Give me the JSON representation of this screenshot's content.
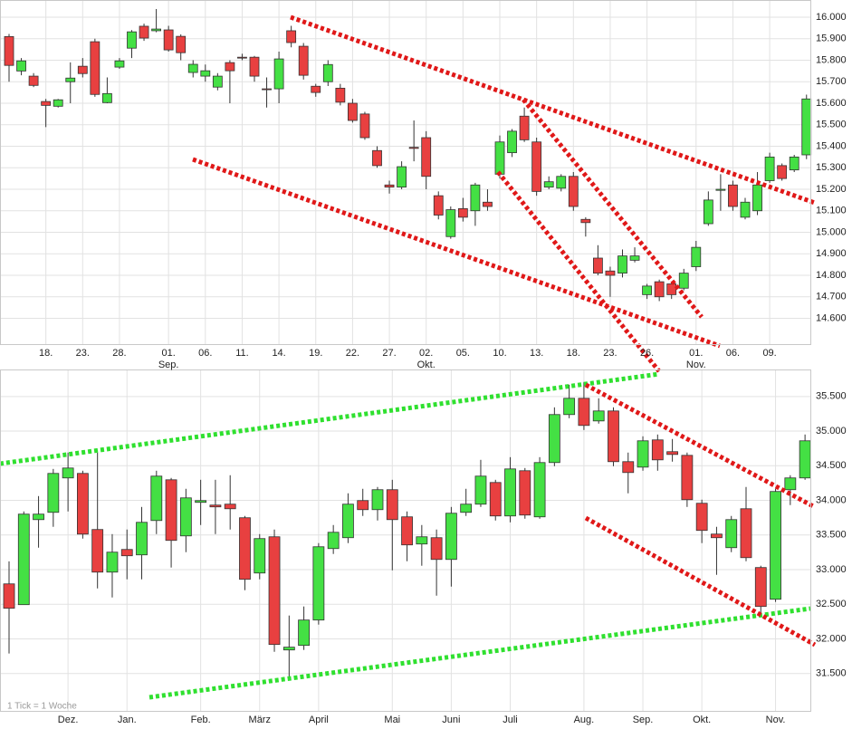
{
  "footnote": "1 Tick = 1 Woche",
  "chart_data": [
    {
      "type": "candlestick",
      "up_color": "#44e044",
      "down_color": "#e84040",
      "grid": true,
      "categories": [
        null,
        null,
        null,
        "18.",
        null,
        null,
        "23.",
        null,
        null,
        "28.",
        null,
        null,
        null,
        "01.",
        null,
        null,
        "06.",
        null,
        null,
        "11.",
        null,
        null,
        "14.",
        null,
        null,
        "19.",
        null,
        null,
        "22.",
        null,
        null,
        "27.",
        null,
        null,
        "02.",
        null,
        null,
        "05.",
        null,
        null,
        "10.",
        null,
        null,
        "13.",
        null,
        null,
        "18.",
        null,
        null,
        "23.",
        null,
        null,
        "26.",
        null,
        null,
        null,
        "01.",
        null,
        null,
        "06.",
        null,
        null,
        "09.",
        null,
        null,
        null
      ],
      "months": [
        {
          "index": 13,
          "label": "Sep."
        },
        {
          "index": 34,
          "label": "Okt."
        },
        {
          "index": 56,
          "label": "Nov."
        }
      ],
      "open": [
        15910,
        15750,
        15726,
        15608,
        15586,
        15700,
        15772,
        15886,
        15603,
        15768,
        15856,
        15958,
        15937,
        15941,
        15911,
        15743,
        15726,
        15675,
        15789,
        15814,
        15814,
        15667,
        15667,
        15937,
        15865,
        15679,
        15700,
        15670,
        15600,
        15550,
        15380,
        15220,
        15210,
        15395,
        15440,
        15170,
        14980,
        15110,
        15100,
        15140,
        15270,
        15370,
        15540,
        15420,
        15210,
        15205,
        15260,
        15060,
        14880,
        14820,
        14810,
        14870,
        14710,
        14770,
        14760,
        14740,
        14840,
        15040,
        15195,
        15220,
        15070,
        15100,
        15240,
        15310,
        15290,
        15360
      ],
      "high": [
        15922,
        15810,
        15740,
        15620,
        15620,
        15790,
        15810,
        15900,
        15720,
        15810,
        15940,
        15970,
        16038,
        15960,
        15920,
        15800,
        15780,
        15740,
        15800,
        15830,
        15820,
        15720,
        15840,
        15960,
        15880,
        15690,
        15800,
        15690,
        15620,
        15560,
        15400,
        15240,
        15330,
        15520,
        15470,
        15190,
        15120,
        15160,
        15230,
        15200,
        15450,
        15480,
        15580,
        15440,
        15260,
        15270,
        15280,
        15070,
        14940,
        14840,
        14920,
        14930,
        14760,
        14780,
        14770,
        14830,
        14960,
        15190,
        15270,
        15240,
        15160,
        15280,
        15370,
        15320,
        15360,
        15640
      ],
      "low": [
        15700,
        15730,
        15675,
        15489,
        15580,
        15600,
        15720,
        15630,
        15600,
        15760,
        15810,
        15890,
        15930,
        15840,
        15800,
        15720,
        15700,
        15660,
        15600,
        15800,
        15700,
        15580,
        15600,
        15860,
        15710,
        15630,
        15680,
        15590,
        15510,
        15430,
        15300,
        15180,
        15200,
        15330,
        15200,
        15060,
        14970,
        15050,
        15030,
        15100,
        15250,
        15350,
        15420,
        15170,
        15200,
        15190,
        15100,
        14980,
        14800,
        14700,
        14790,
        14860,
        14690,
        14680,
        14690,
        14730,
        14820,
        15030,
        15100,
        15100,
        15060,
        15080,
        15230,
        15240,
        15280,
        15340
      ],
      "close": [
        15776,
        15797,
        15683,
        15590,
        15616,
        15717,
        15738,
        15641,
        15645,
        15797,
        15932,
        15903,
        15945,
        15848,
        15835,
        15781,
        15751,
        15726,
        15751,
        15810,
        15726,
        15665,
        15806,
        15882,
        15730,
        15650,
        15780,
        15605,
        15520,
        15440,
        15310,
        15210,
        15305,
        15390,
        15260,
        15080,
        15105,
        15070,
        15220,
        15120,
        15420,
        15470,
        15430,
        15190,
        15235,
        15260,
        15120,
        15045,
        14810,
        14800,
        14890,
        14890,
        14750,
        14700,
        14710,
        14810,
        14930,
        15150,
        15200,
        15120,
        15140,
        15220,
        15350,
        15250,
        15350,
        15620
      ],
      "ylim": [
        14480,
        16080
      ],
      "yticks": [
        {
          "value": 14600,
          "label": "14.600"
        },
        {
          "value": 14700,
          "label": "14.700"
        },
        {
          "value": 14800,
          "label": "14.800"
        },
        {
          "value": 14900,
          "label": "14.900"
        },
        {
          "value": 15000,
          "label": "15.000"
        },
        {
          "value": 15100,
          "label": "15.100"
        },
        {
          "value": 15200,
          "label": "15.200"
        },
        {
          "value": 15300,
          "label": "15.300"
        },
        {
          "value": 15400,
          "label": "15.400"
        },
        {
          "value": 15500,
          "label": "15.500"
        },
        {
          "value": 15600,
          "label": "15.600"
        },
        {
          "value": 15700,
          "label": "15.700"
        },
        {
          "value": 15800,
          "label": "15.800"
        },
        {
          "value": 15900,
          "label": "15.900"
        },
        {
          "value": 16000,
          "label": "16.000"
        }
      ]
    },
    {
      "type": "candlestick",
      "up_color": "#44e044",
      "down_color": "#e84040",
      "grid": true,
      "categories": [
        null,
        null,
        null,
        null,
        "Dez.",
        null,
        null,
        null,
        "Jan.",
        null,
        null,
        null,
        null,
        "Feb.",
        null,
        null,
        null,
        "März",
        null,
        null,
        null,
        "April",
        null,
        null,
        null,
        null,
        "Mai",
        null,
        null,
        null,
        "Juni",
        null,
        null,
        null,
        "Juli",
        null,
        null,
        null,
        null,
        "Aug.",
        null,
        null,
        null,
        "Sep.",
        null,
        null,
        null,
        "Okt.",
        null,
        null,
        null,
        null,
        "Nov.",
        null,
        null
      ],
      "open": [
        32794,
        32494,
        33722,
        33827,
        34324,
        34389,
        33579,
        32964,
        33291,
        33213,
        33709,
        34297,
        33487,
        33971,
        33932,
        33945,
        33749,
        32951,
        33474,
        31840,
        31906,
        32272,
        33304,
        33461,
        33997,
        33866,
        34154,
        33762,
        33370,
        33461,
        33147,
        33827,
        33945,
        34258,
        33775,
        34428,
        33762,
        34546,
        35239,
        35474,
        35147,
        35291,
        34559,
        34480,
        34873,
        34703,
        34650,
        33958,
        33513,
        33317,
        33879,
        33030,
        32572,
        34154,
        34324
      ],
      "high": [
        33120,
        33840,
        34062,
        34454,
        34690,
        34428,
        34690,
        33513,
        33579,
        33905,
        34428,
        34324,
        34167,
        34297,
        34297,
        34363,
        33775,
        33513,
        33579,
        32337,
        32468,
        33383,
        33644,
        34102,
        34167,
        34193,
        34297,
        33840,
        33644,
        33579,
        33905,
        34167,
        34585,
        34297,
        34624,
        34467,
        34624,
        35343,
        35670,
        35709,
        35474,
        35343,
        34690,
        34925,
        34951,
        34886,
        34690,
        34010,
        33618,
        33775,
        34193,
        33056,
        34167,
        34363,
        34951
      ],
      "low": [
        31788,
        32494,
        33317,
        33618,
        33840,
        33448,
        32729,
        32598,
        32860,
        32860,
        33513,
        33030,
        33252,
        33644,
        33513,
        33579,
        32703,
        32860,
        31814,
        31448,
        31840,
        32206,
        33226,
        33383,
        33775,
        33709,
        32990,
        33121,
        33056,
        32624,
        32755,
        33775,
        33905,
        33709,
        33683,
        33735,
        33735,
        34493,
        35186,
        35016,
        35108,
        34493,
        34102,
        34428,
        34428,
        34559,
        33905,
        33383,
        32925,
        33252,
        33121,
        32337,
        32533,
        33932,
        34297
      ],
      "close": [
        32442,
        33801,
        33801,
        34389,
        34467,
        33513,
        32964,
        33252,
        33200,
        33683,
        34350,
        33422,
        34036,
        33997,
        33906,
        33879,
        32860,
        33448,
        31919,
        31880,
        32272,
        33330,
        33539,
        33945,
        33866,
        34154,
        33722,
        33357,
        33474,
        33147,
        33814,
        33945,
        34350,
        33775,
        34454,
        33788,
        34546,
        35239,
        35474,
        35082,
        35291,
        34559,
        34402,
        34860,
        34585,
        34663,
        34010,
        33566,
        33461,
        33722,
        33173,
        32468,
        34128,
        34324,
        34860
      ],
      "ylim": [
        30960,
        35890
      ],
      "yticks": [
        {
          "value": 31500,
          "label": "31.500"
        },
        {
          "value": 32000,
          "label": "32.000"
        },
        {
          "value": 32500,
          "label": "32.500"
        },
        {
          "value": 33000,
          "label": "33.000"
        },
        {
          "value": 33500,
          "label": "33.500"
        },
        {
          "value": 34000,
          "label": "34.000"
        },
        {
          "value": 34500,
          "label": "34.500"
        },
        {
          "value": 35000,
          "label": "35.000"
        },
        {
          "value": 35500,
          "label": "35.500"
        }
      ]
    }
  ]
}
